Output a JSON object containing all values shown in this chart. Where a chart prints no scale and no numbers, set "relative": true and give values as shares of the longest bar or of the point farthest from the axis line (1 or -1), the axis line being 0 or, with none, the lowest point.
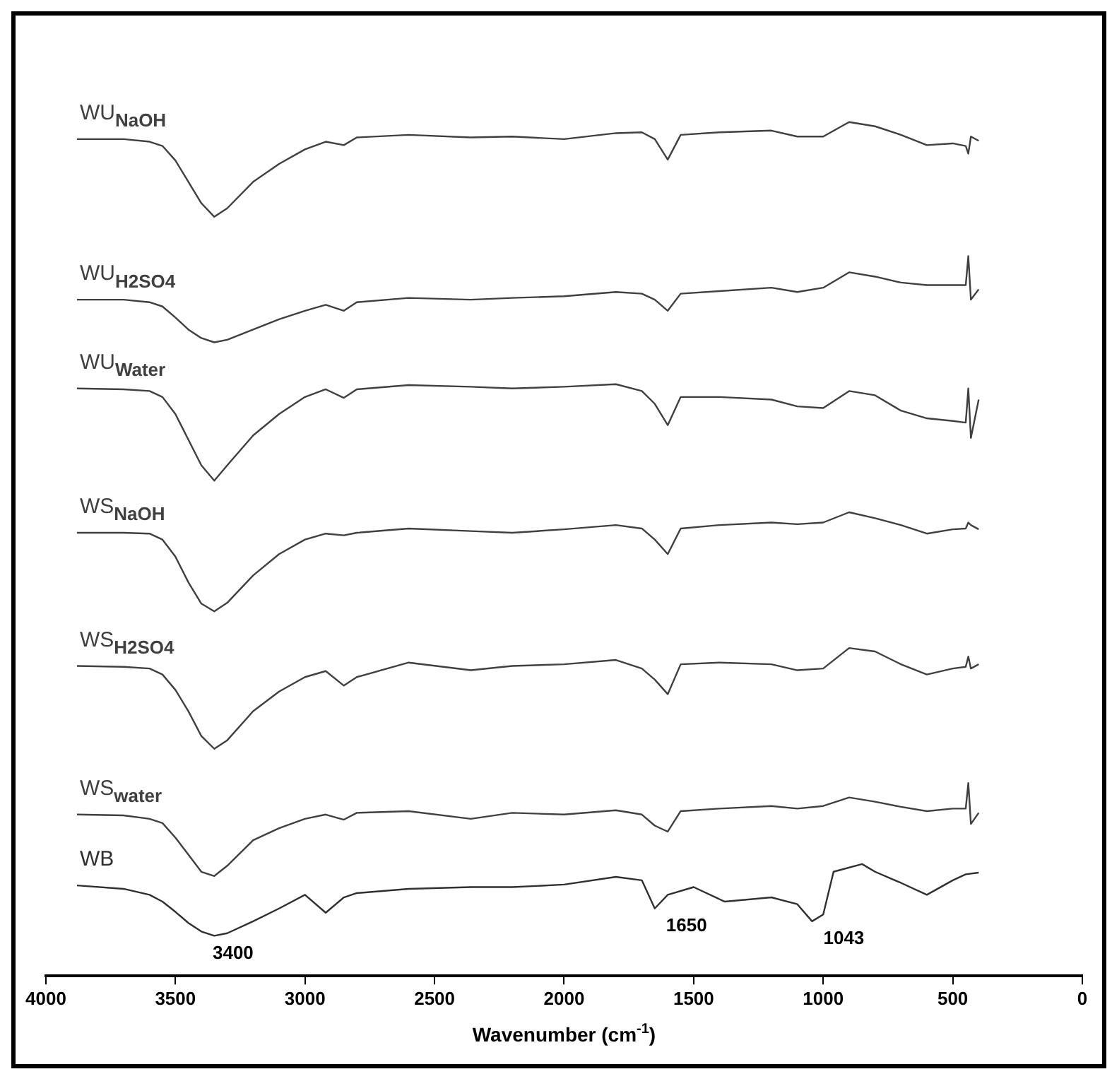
{
  "chart_data": {
    "type": "line",
    "relative": true,
    "xlabel": "Wavenumber (cm$^{-1}$)",
    "xlim": [
      4000,
      0
    ],
    "xticks": [
      4000,
      3500,
      3000,
      2500,
      2000,
      1500,
      1000,
      500,
      0
    ],
    "x": [
      3880,
      3700,
      3600,
      3550,
      3500,
      3450,
      3400,
      3350,
      3300,
      3200,
      3100,
      3000,
      2920,
      2850,
      2800,
      2600,
      2360,
      2200,
      2000,
      1800,
      1700,
      1650,
      1600,
      1550,
      1400,
      1200,
      1100,
      1000,
      900,
      800,
      700,
      600,
      500,
      450,
      440,
      430,
      400
    ],
    "series": [
      {
        "name": "WU$_{NaOH}$",
        "color": "#404040",
        "values": [
          0.98,
          0.98,
          0.977,
          0.972,
          0.955,
          0.93,
          0.905,
          0.889,
          0.899,
          0.93,
          0.951,
          0.968,
          0.977,
          0.973,
          0.982,
          0.985,
          0.982,
          0.983,
          0.98,
          0.987,
          0.988,
          0.98,
          0.956,
          0.985,
          0.988,
          0.99,
          0.983,
          0.983,
          1,
          0.995,
          0.985,
          0.973,
          0.975,
          0.972,
          0.963,
          0.983,
          0.978
        ]
      },
      {
        "name": "WU$_{H2SO4}$",
        "color": "#404040",
        "values": [
          0.792,
          0.792,
          0.789,
          0.784,
          0.771,
          0.757,
          0.747,
          0.742,
          0.745,
          0.757,
          0.769,
          0.779,
          0.786,
          0.779,
          0.789,
          0.794,
          0.792,
          0.794,
          0.796,
          0.801,
          0.799,
          0.792,
          0.779,
          0.799,
          0.802,
          0.806,
          0.801,
          0.806,
          0.824,
          0.819,
          0.812,
          0.809,
          0.809,
          0.809,
          0.843,
          0.792,
          0.804
        ]
      },
      {
        "name": "WU$_{Water}$",
        "color": "#404040",
        "values": [
          0.688,
          0.687,
          0.685,
          0.678,
          0.658,
          0.628,
          0.598,
          0.58,
          0.598,
          0.633,
          0.658,
          0.678,
          0.687,
          0.677,
          0.687,
          0.692,
          0.69,
          0.688,
          0.69,
          0.693,
          0.685,
          0.67,
          0.645,
          0.678,
          0.678,
          0.675,
          0.667,
          0.665,
          0.685,
          0.68,
          0.662,
          0.653,
          0.65,
          0.648,
          0.688,
          0.63,
          0.675
        ]
      },
      {
        "name": "WS$_{NaOH}$",
        "color": "#404040",
        "values": [
          0.519,
          0.519,
          0.518,
          0.511,
          0.491,
          0.461,
          0.436,
          0.427,
          0.437,
          0.469,
          0.494,
          0.511,
          0.518,
          0.516,
          0.519,
          0.524,
          0.521,
          0.519,
          0.523,
          0.528,
          0.524,
          0.511,
          0.494,
          0.524,
          0.528,
          0.531,
          0.529,
          0.531,
          0.543,
          0.536,
          0.528,
          0.518,
          0.523,
          0.524,
          0.531,
          0.528,
          0.523
        ]
      },
      {
        "name": "WS$_{H2SO4}$",
        "color": "#404040",
        "values": [
          0.363,
          0.362,
          0.36,
          0.353,
          0.335,
          0.31,
          0.281,
          0.266,
          0.276,
          0.31,
          0.333,
          0.35,
          0.357,
          0.34,
          0.35,
          0.367,
          0.358,
          0.363,
          0.365,
          0.37,
          0.36,
          0.347,
          0.33,
          0.365,
          0.367,
          0.365,
          0.358,
          0.36,
          0.384,
          0.38,
          0.365,
          0.353,
          0.36,
          0.362,
          0.374,
          0.36,
          0.365
        ]
      },
      {
        "name": "WS$_{water}$",
        "color": "#404040",
        "values": [
          0.189,
          0.188,
          0.184,
          0.179,
          0.162,
          0.142,
          0.122,
          0.117,
          0.129,
          0.159,
          0.173,
          0.184,
          0.189,
          0.183,
          0.191,
          0.193,
          0.184,
          0.191,
          0.189,
          0.194,
          0.189,
          0.176,
          0.169,
          0.193,
          0.196,
          0.199,
          0.196,
          0.199,
          0.209,
          0.204,
          0.198,
          0.193,
          0.196,
          0.196,
          0.226,
          0.178,
          0.191
        ]
      },
      {
        "name": "WB",
        "color": "#303030",
        "x": [
          3880,
          3700,
          3600,
          3550,
          3500,
          3450,
          3400,
          3350,
          3300,
          3200,
          3100,
          3000,
          2920,
          2850,
          2800,
          2600,
          2360,
          2200,
          2000,
          1800,
          1700,
          1650,
          1600,
          1500,
          1380,
          1200,
          1100,
          1043,
          1000,
          960,
          850,
          800,
          700,
          600,
          500,
          450,
          400
        ],
        "values": [
          0.106,
          0.102,
          0.095,
          0.087,
          0.075,
          0.062,
          0.052,
          0.047,
          0.05,
          0.064,
          0.079,
          0.095,
          0.074,
          0.092,
          0.097,
          0.102,
          0.104,
          0.104,
          0.107,
          0.116,
          0.112,
          0.079,
          0.095,
          0.104,
          0.087,
          0.092,
          0.084,
          0.064,
          0.072,
          0.122,
          0.131,
          0.122,
          0.109,
          0.095,
          0.112,
          0.119,
          0.121
        ]
      }
    ],
    "annotations": [
      {
        "text": "3400",
        "x": 3400,
        "y": 0.047
      },
      {
        "text": "1650",
        "x": 1650,
        "y": 0.079
      },
      {
        "text": "1043",
        "x": 1043,
        "y": 0.064
      }
    ]
  }
}
